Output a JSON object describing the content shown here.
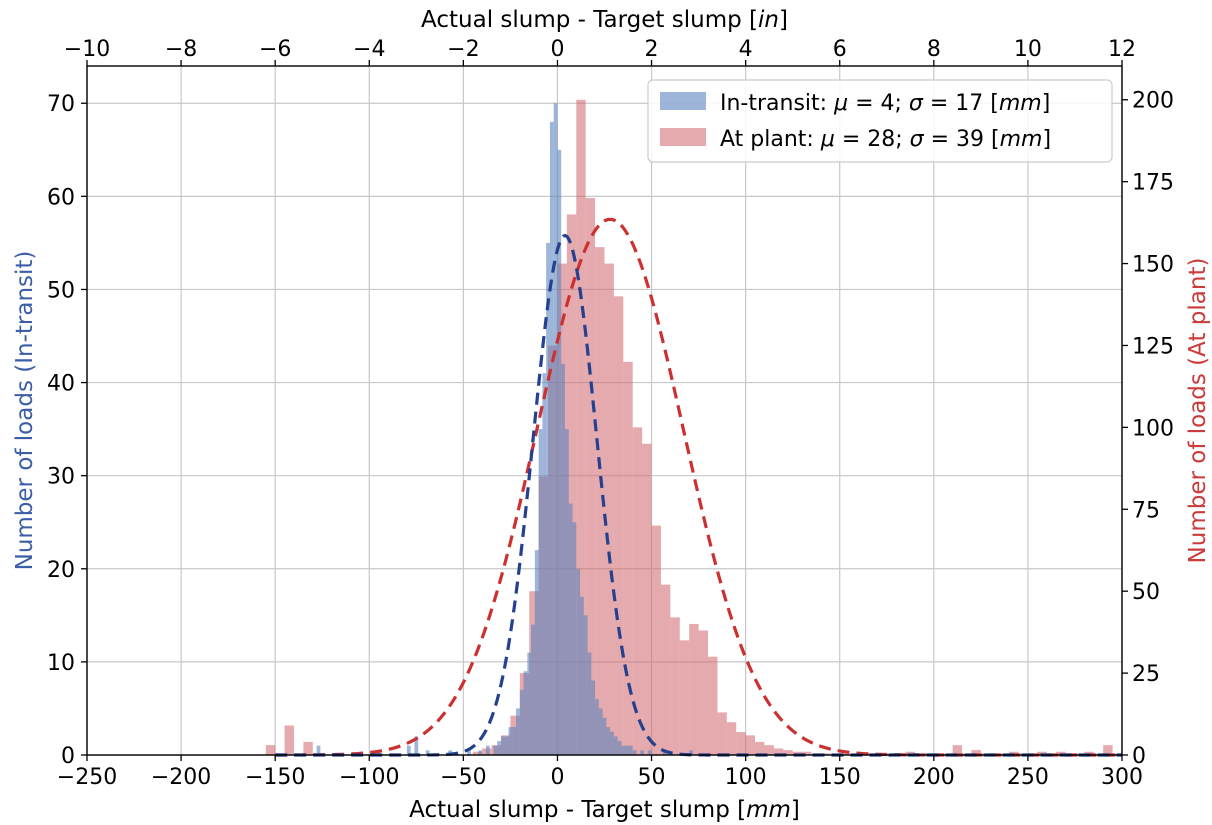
{
  "chart_data": {
    "type": "histogram",
    "xlabel_bottom": "Actual slump - Target slump [mm]",
    "xlabel_bottom_parts": [
      "Actual slump - Target slump [",
      "mm",
      "]"
    ],
    "xlabel_top": "Actual slump - Target slump [in]",
    "xlabel_top_parts": [
      "Actual slump - Target slump [",
      "in",
      "]"
    ],
    "ylabel_left": "Number of loads (In-transit)",
    "ylabel_right": "Number of loads (At plant)",
    "xlim_mm": [
      -250,
      300
    ],
    "xlim_in": [
      -10,
      12
    ],
    "ylim_left": [
      0,
      74
    ],
    "ylim_right": [
      0,
      210.3
    ],
    "xticks_bottom": [
      "−250",
      "−200",
      "−150",
      "−100",
      "−50",
      "0",
      "50",
      "100",
      "150",
      "200",
      "250",
      "300"
    ],
    "xticks_bottom_values": [
      -250,
      -200,
      -150,
      -100,
      -50,
      0,
      50,
      100,
      150,
      200,
      250,
      300
    ],
    "xticks_top": [
      "−10",
      "−8",
      "−6",
      "−4",
      "−2",
      "0",
      "2",
      "4",
      "6",
      "8",
      "10",
      "12"
    ],
    "xticks_top_values": [
      -10,
      -8,
      -6,
      -4,
      -2,
      0,
      2,
      4,
      6,
      8,
      10,
      12
    ],
    "yticks_left": [
      "0",
      "10",
      "20",
      "30",
      "40",
      "50",
      "60",
      "70"
    ],
    "yticks_left_values": [
      0,
      10,
      20,
      30,
      40,
      50,
      60,
      70
    ],
    "yticks_right": [
      "0",
      "25",
      "50",
      "75",
      "100",
      "125",
      "150",
      "175",
      "200"
    ],
    "yticks_right_values": [
      0,
      25,
      50,
      75,
      100,
      125,
      150,
      175,
      200
    ],
    "grid": true,
    "legend_position": "top-right",
    "colors": {
      "in_transit_bar": "#5b84be",
      "at_plant_bar": "#d0656b",
      "in_transit_fit": "#24408e",
      "at_plant_fit": "#cc3030",
      "left_axis_label": "#3b5ea6",
      "right_axis_label": "#cc3a3a"
    },
    "series": [
      {
        "name": "In-transit",
        "legend_label": "In-transit: μ = 4; σ = 17 [mm]",
        "legend_parts": [
          "In-transit: ",
          "μ",
          " = 4; ",
          "σ",
          " = 17 [",
          "mm",
          "]"
        ],
        "axis": "left",
        "mu": 4,
        "sigma": 17,
        "fit_peak": 55.8,
        "bin_width": 2,
        "bins": [
          [
            -128,
            1
          ],
          [
            -96,
            0.5
          ],
          [
            -80,
            1
          ],
          [
            -76,
            2
          ],
          [
            -70,
            0.5
          ],
          [
            -58,
            0.5
          ],
          [
            -48,
            0.5
          ],
          [
            -42,
            0.5
          ],
          [
            -38,
            1
          ],
          [
            -34,
            1
          ],
          [
            -32,
            1.5
          ],
          [
            -30,
            2
          ],
          [
            -28,
            2
          ],
          [
            -26,
            3
          ],
          [
            -24,
            3
          ],
          [
            -22,
            5
          ],
          [
            -20,
            7
          ],
          [
            -18,
            9
          ],
          [
            -16,
            11
          ],
          [
            -14,
            14
          ],
          [
            -12,
            22
          ],
          [
            -10,
            35
          ],
          [
            -8,
            41
          ],
          [
            -6,
            55
          ],
          [
            -4,
            68
          ],
          [
            -2,
            70
          ],
          [
            0,
            65
          ],
          [
            2,
            42
          ],
          [
            4,
            35
          ],
          [
            6,
            27
          ],
          [
            8,
            25
          ],
          [
            10,
            20
          ],
          [
            12,
            17
          ],
          [
            14,
            15
          ],
          [
            16,
            11
          ],
          [
            18,
            8
          ],
          [
            20,
            6
          ],
          [
            22,
            5
          ],
          [
            24,
            4
          ],
          [
            26,
            3
          ],
          [
            28,
            2.5
          ],
          [
            30,
            2
          ],
          [
            32,
            1.5
          ],
          [
            34,
            1
          ],
          [
            36,
            1
          ],
          [
            38,
            1
          ],
          [
            40,
            0.5
          ],
          [
            44,
            0.5
          ],
          [
            48,
            0.5
          ],
          [
            56,
            0.5
          ],
          [
            70,
            0.5
          ]
        ]
      },
      {
        "name": "At plant",
        "legend_label": "At plant: μ = 28; σ = 39 [mm]",
        "legend_parts": [
          "At plant: ",
          "μ",
          " = 28; ",
          "σ",
          " = 39 [",
          "mm",
          "]"
        ],
        "axis": "right",
        "mu": 28,
        "sigma": 39,
        "fit_peak": 163.5,
        "bin_width": 5,
        "bins": [
          [
            -155,
            3
          ],
          [
            -145,
            9
          ],
          [
            -135,
            4
          ],
          [
            -45,
            1
          ],
          [
            -40,
            2
          ],
          [
            -35,
            3
          ],
          [
            -30,
            6
          ],
          [
            -25,
            12
          ],
          [
            -20,
            25
          ],
          [
            -15,
            50
          ],
          [
            -10,
            85
          ],
          [
            -5,
            125
          ],
          [
            0,
            150
          ],
          [
            5,
            165
          ],
          [
            10,
            200
          ],
          [
            15,
            170
          ],
          [
            20,
            155
          ],
          [
            25,
            150
          ],
          [
            30,
            140
          ],
          [
            35,
            120
          ],
          [
            40,
            100
          ],
          [
            45,
            95
          ],
          [
            50,
            70
          ],
          [
            55,
            52
          ],
          [
            60,
            42
          ],
          [
            65,
            35
          ],
          [
            70,
            40
          ],
          [
            75,
            38
          ],
          [
            80,
            30
          ],
          [
            85,
            13
          ],
          [
            90,
            10
          ],
          [
            95,
            7
          ],
          [
            100,
            6
          ],
          [
            105,
            4
          ],
          [
            110,
            3
          ],
          [
            115,
            2
          ],
          [
            120,
            1.5
          ],
          [
            125,
            1
          ],
          [
            130,
            1
          ],
          [
            140,
            0.5
          ],
          [
            150,
            0.5
          ],
          [
            165,
            0.5
          ],
          [
            185,
            1
          ],
          [
            195,
            0.5
          ],
          [
            210,
            3
          ],
          [
            220,
            1.5
          ],
          [
            240,
            1
          ],
          [
            255,
            1
          ],
          [
            265,
            1
          ],
          [
            280,
            1
          ],
          [
            290,
            3
          ]
        ]
      }
    ]
  }
}
